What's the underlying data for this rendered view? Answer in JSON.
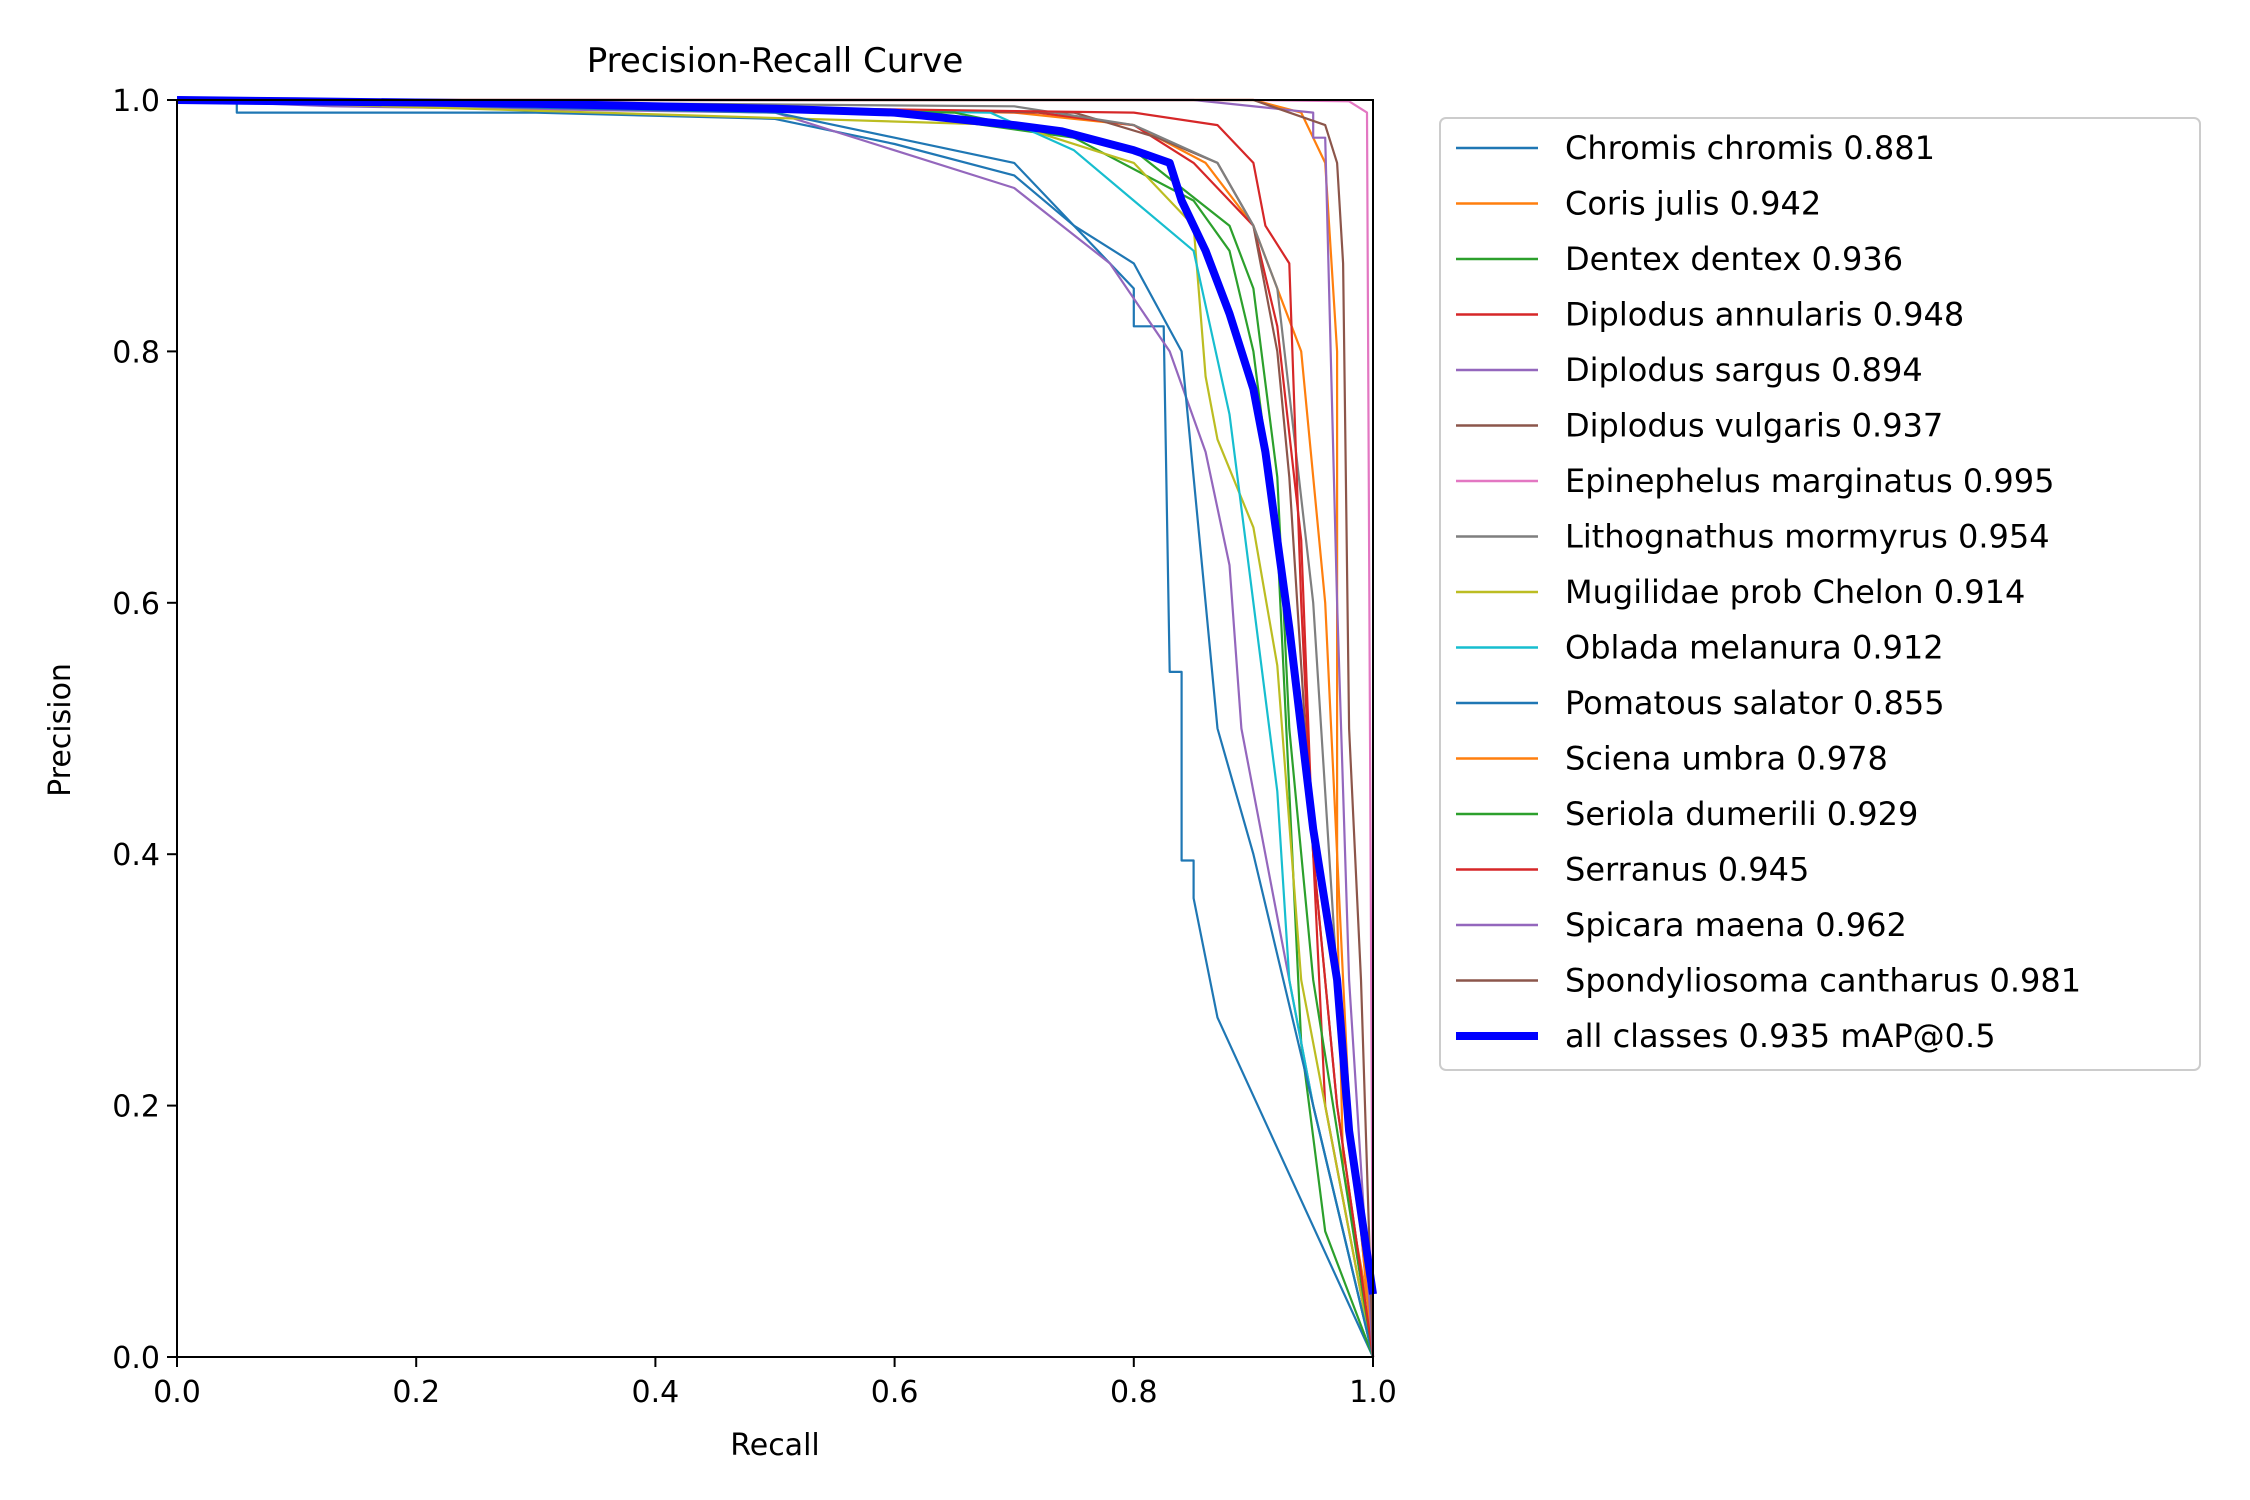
{
  "chart_data": {
    "type": "line",
    "title": "Precision-Recall Curve",
    "xlabel": "Recall",
    "ylabel": "Precision",
    "xlim": [
      0.0,
      1.0
    ],
    "ylim": [
      0.0,
      1.0
    ],
    "xticks": [
      "0.0",
      "0.2",
      "0.4",
      "0.6",
      "0.8",
      "1.0"
    ],
    "yticks": [
      "0.0",
      "0.2",
      "0.4",
      "0.6",
      "0.8",
      "1.0"
    ],
    "grid": false,
    "legend_position": "outside-right",
    "series": [
      {
        "name": "Chromis chromis 0.881",
        "color": "#1f77b4",
        "width": 1,
        "x": [
          0.0,
          0.05,
          0.05,
          0.3,
          0.5,
          0.55,
          0.6,
          0.7,
          0.75,
          0.8,
          0.8,
          0.825,
          0.83,
          0.84,
          0.84,
          0.85,
          0.85,
          0.87,
          1.0
        ],
        "y": [
          1.0,
          1.0,
          0.99,
          0.99,
          0.985,
          0.975,
          0.965,
          0.94,
          0.9,
          0.85,
          0.82,
          0.82,
          0.545,
          0.545,
          0.395,
          0.395,
          0.365,
          0.27,
          0.0
        ]
      },
      {
        "name": "Coris julis 0.942",
        "color": "#ff7f0e",
        "width": 1,
        "x": [
          0.0,
          0.7,
          0.8,
          0.86,
          0.9,
          0.94,
          0.96,
          0.97,
          0.97,
          0.975,
          1.0
        ],
        "y": [
          1.0,
          0.99,
          0.98,
          0.95,
          0.9,
          0.8,
          0.6,
          0.4,
          0.36,
          0.15,
          0.02
        ]
      },
      {
        "name": "Dentex dentex 0.936",
        "color": "#2ca02c",
        "width": 1,
        "x": [
          0.0,
          0.6,
          0.75,
          0.85,
          0.88,
          0.9,
          0.92,
          0.93,
          0.94,
          0.96,
          1.0
        ],
        "y": [
          1.0,
          0.99,
          0.97,
          0.92,
          0.88,
          0.8,
          0.65,
          0.45,
          0.25,
          0.1,
          0.0
        ]
      },
      {
        "name": "Diplodus annularis 0.948",
        "color": "#d62728",
        "width": 1,
        "x": [
          0.0,
          0.72,
          0.8,
          0.85,
          0.88,
          0.9,
          0.92,
          0.94,
          0.95,
          0.96,
          1.0
        ],
        "y": [
          1.0,
          0.99,
          0.98,
          0.95,
          0.92,
          0.9,
          0.82,
          0.65,
          0.4,
          0.2,
          0.0
        ]
      },
      {
        "name": "Diplodus sargus 0.894",
        "color": "#9467bd",
        "width": 1,
        "x": [
          0.0,
          0.13,
          0.5,
          0.6,
          0.7,
          0.78,
          0.83,
          0.86,
          0.88,
          0.89,
          0.9,
          0.92,
          0.95,
          1.0
        ],
        "y": [
          1.0,
          0.995,
          0.99,
          0.96,
          0.93,
          0.87,
          0.8,
          0.72,
          0.63,
          0.5,
          0.45,
          0.35,
          0.2,
          0.0
        ]
      },
      {
        "name": "Diplodus vulgaris 0.937",
        "color": "#8c564b",
        "width": 1,
        "x": [
          0.0,
          0.75,
          0.82,
          0.87,
          0.9,
          0.92,
          0.93,
          0.94,
          0.95,
          0.97,
          1.0
        ],
        "y": [
          1.0,
          0.99,
          0.97,
          0.95,
          0.9,
          0.8,
          0.7,
          0.55,
          0.4,
          0.2,
          0.0
        ]
      },
      {
        "name": "Epinephelus marginatus 0.995",
        "color": "#e377c2",
        "width": 1,
        "x": [
          0.0,
          0.9,
          0.98,
          0.995,
          1.0
        ],
        "y": [
          1.0,
          1.0,
          0.999,
          0.99,
          0.0
        ]
      },
      {
        "name": "Lithognathus mormyrus 0.954",
        "color": "#7f7f7f",
        "width": 1,
        "x": [
          0.0,
          0.7,
          0.8,
          0.87,
          0.9,
          0.92,
          0.95,
          0.97,
          1.0
        ],
        "y": [
          1.0,
          0.995,
          0.98,
          0.95,
          0.9,
          0.85,
          0.6,
          0.3,
          0.0
        ]
      },
      {
        "name": "Mugilidae prob Chelon 0.914",
        "color": "#bcbd22",
        "width": 1,
        "x": [
          0.0,
          0.7,
          0.8,
          0.85,
          0.86,
          0.87,
          0.9,
          0.92,
          0.94,
          1.0
        ],
        "y": [
          1.0,
          0.98,
          0.95,
          0.9,
          0.78,
          0.73,
          0.66,
          0.55,
          0.3,
          0.0
        ]
      },
      {
        "name": "Oblada melanura 0.912",
        "color": "#17becf",
        "width": 1,
        "x": [
          0.0,
          0.68,
          0.75,
          0.8,
          0.85,
          0.88,
          0.9,
          0.92,
          0.93,
          0.95,
          1.0
        ],
        "y": [
          1.0,
          0.99,
          0.96,
          0.92,
          0.88,
          0.75,
          0.6,
          0.45,
          0.3,
          0.2,
          0.0
        ]
      },
      {
        "name": "Pomatous salator 0.855",
        "color": "#1f77b4",
        "width": 1,
        "x": [
          0.0,
          0.5,
          0.6,
          0.7,
          0.75,
          0.8,
          0.84,
          0.85,
          0.86,
          0.87,
          0.9,
          1.0
        ],
        "y": [
          1.0,
          0.99,
          0.97,
          0.95,
          0.9,
          0.87,
          0.8,
          0.7,
          0.6,
          0.5,
          0.4,
          0.0
        ]
      },
      {
        "name": "Sciena umbra 0.978",
        "color": "#ff7f0e",
        "width": 1,
        "x": [
          0.0,
          0.9,
          0.94,
          0.96,
          0.97,
          0.97,
          0.98,
          1.0
        ],
        "y": [
          1.0,
          1.0,
          0.99,
          0.95,
          0.8,
          0.4,
          0.2,
          0.0
        ]
      },
      {
        "name": "Seriola dumerili 0.929",
        "color": "#2ca02c",
        "width": 1,
        "x": [
          0.0,
          0.65,
          0.8,
          0.88,
          0.9,
          0.92,
          0.93,
          0.95,
          1.0
        ],
        "y": [
          1.0,
          0.99,
          0.96,
          0.9,
          0.85,
          0.7,
          0.5,
          0.3,
          0.0
        ]
      },
      {
        "name": "Serranus 0.945",
        "color": "#d62728",
        "width": 1,
        "x": [
          0.0,
          0.8,
          0.87,
          0.9,
          0.91,
          0.93,
          0.94,
          0.95,
          0.97,
          1.0
        ],
        "y": [
          1.0,
          0.99,
          0.98,
          0.95,
          0.9,
          0.87,
          0.6,
          0.4,
          0.2,
          0.0
        ]
      },
      {
        "name": "Spicara maena 0.962",
        "color": "#9467bd",
        "width": 1,
        "x": [
          0.0,
          0.85,
          0.95,
          0.95,
          0.96,
          0.97,
          0.98,
          1.0
        ],
        "y": [
          1.0,
          1.0,
          0.99,
          0.97,
          0.97,
          0.6,
          0.3,
          0.0
        ]
      },
      {
        "name": "Spondyliosoma cantharus 0.981",
        "color": "#8c564b",
        "width": 1,
        "x": [
          0.0,
          0.9,
          0.96,
          0.97,
          0.975,
          0.98,
          0.99,
          1.0
        ],
        "y": [
          1.0,
          1.0,
          0.98,
          0.95,
          0.87,
          0.5,
          0.3,
          0.0
        ]
      },
      {
        "name": "all classes 0.935 mAP@0.5",
        "color": "#0000ff",
        "width": 3,
        "x": [
          0.0,
          0.1,
          0.3,
          0.5,
          0.6,
          0.7,
          0.74,
          0.78,
          0.8,
          0.83,
          0.84,
          0.86,
          0.88,
          0.9,
          0.91,
          0.92,
          0.93,
          0.94,
          0.95,
          0.97,
          0.98,
          1.0
        ],
        "y": [
          1.0,
          0.999,
          0.997,
          0.993,
          0.99,
          0.98,
          0.975,
          0.965,
          0.96,
          0.95,
          0.92,
          0.88,
          0.83,
          0.77,
          0.72,
          0.65,
          0.58,
          0.5,
          0.42,
          0.3,
          0.18,
          0.05
        ]
      }
    ]
  }
}
